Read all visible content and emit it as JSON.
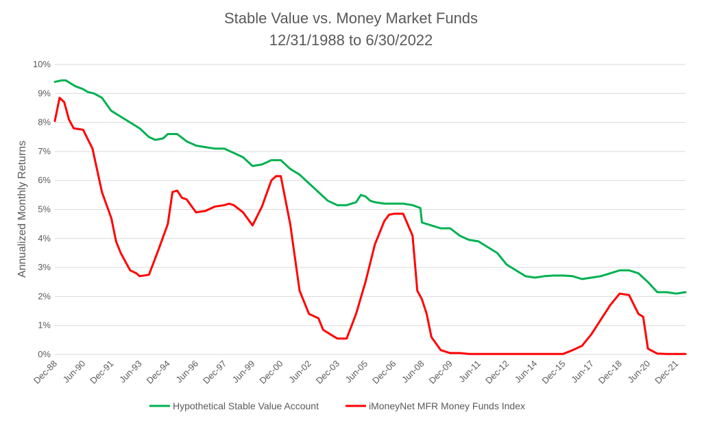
{
  "chart_data": {
    "type": "line",
    "title": "Stable Value vs. Money Market Funds",
    "subtitle": "12/31/1988 to 6/30/2022",
    "xlabel": "",
    "ylabel": "Annualized Monthly Returns",
    "ylim": [
      0,
      10
    ],
    "y_ticks": [
      "0%",
      "1%",
      "2%",
      "3%",
      "4%",
      "5%",
      "6%",
      "7%",
      "8%",
      "9%",
      "10%"
    ],
    "x_ticks": [
      "Dec-88",
      "Jun-90",
      "Dec-91",
      "Jun-93",
      "Dec-94",
      "Jun-96",
      "Dec-97",
      "Jun-99",
      "Dec-00",
      "Jun-02",
      "Dec-03",
      "Jun-05",
      "Dec-06",
      "Jun-08",
      "Dec-09",
      "Jun-11",
      "Dec-12",
      "Jun-14",
      "Dec-15",
      "Jun-17",
      "Dec-18",
      "Jun-20",
      "Dec-21"
    ],
    "x_start": "Dec-88",
    "x_end": "Jun-22",
    "grid": true,
    "legend_position": "bottom",
    "series": [
      {
        "name": "Hypothetical Stable Value Account",
        "color": "#00b050",
        "points": [
          [
            "Dec-88",
            9.4
          ],
          [
            "Apr-89",
            9.45
          ],
          [
            "Jul-89",
            9.45
          ],
          [
            "Jan-90",
            9.25
          ],
          [
            "Jun-90",
            9.15
          ],
          [
            "Sep-90",
            9.05
          ],
          [
            "Jan-91",
            9.0
          ],
          [
            "Jun-91",
            8.85
          ],
          [
            "Dec-91",
            8.4
          ],
          [
            "Jun-92",
            8.2
          ],
          [
            "Dec-92",
            8.0
          ],
          [
            "Jun-93",
            7.8
          ],
          [
            "Dec-93",
            7.5
          ],
          [
            "Apr-94",
            7.4
          ],
          [
            "Sep-94",
            7.45
          ],
          [
            "Dec-94",
            7.6
          ],
          [
            "Jun-95",
            7.6
          ],
          [
            "Dec-95",
            7.35
          ],
          [
            "Jun-96",
            7.2
          ],
          [
            "Dec-96",
            7.15
          ],
          [
            "Jun-97",
            7.1
          ],
          [
            "Dec-97",
            7.1
          ],
          [
            "Jun-98",
            6.95
          ],
          [
            "Dec-98",
            6.8
          ],
          [
            "Jun-99",
            6.5
          ],
          [
            "Dec-99",
            6.55
          ],
          [
            "Jun-00",
            6.7
          ],
          [
            "Dec-00",
            6.7
          ],
          [
            "Jun-01",
            6.4
          ],
          [
            "Dec-01",
            6.2
          ],
          [
            "Jun-02",
            5.9
          ],
          [
            "Dec-02",
            5.6
          ],
          [
            "Jun-03",
            5.3
          ],
          [
            "Dec-03",
            5.15
          ],
          [
            "Jun-04",
            5.15
          ],
          [
            "Dec-04",
            5.25
          ],
          [
            "Mar-05",
            5.5
          ],
          [
            "Jun-05",
            5.45
          ],
          [
            "Sep-05",
            5.3
          ],
          [
            "Dec-05",
            5.25
          ],
          [
            "Jun-06",
            5.2
          ],
          [
            "Dec-06",
            5.2
          ],
          [
            "Jun-07",
            5.2
          ],
          [
            "Dec-07",
            5.15
          ],
          [
            "May-08",
            5.05
          ],
          [
            "Jun-08",
            4.55
          ],
          [
            "Dec-08",
            4.45
          ],
          [
            "Jun-09",
            4.35
          ],
          [
            "Dec-09",
            4.35
          ],
          [
            "Jun-10",
            4.1
          ],
          [
            "Dec-10",
            3.95
          ],
          [
            "Jun-11",
            3.9
          ],
          [
            "Dec-11",
            3.7
          ],
          [
            "Jun-12",
            3.5
          ],
          [
            "Dec-12",
            3.1
          ],
          [
            "Jun-13",
            2.9
          ],
          [
            "Dec-13",
            2.7
          ],
          [
            "Jun-14",
            2.65
          ],
          [
            "Dec-14",
            2.7
          ],
          [
            "Jun-15",
            2.72
          ],
          [
            "Dec-15",
            2.72
          ],
          [
            "Jun-16",
            2.7
          ],
          [
            "Dec-16",
            2.6
          ],
          [
            "Jun-17",
            2.65
          ],
          [
            "Dec-17",
            2.7
          ],
          [
            "Jun-18",
            2.8
          ],
          [
            "Dec-18",
            2.9
          ],
          [
            "Jun-19",
            2.9
          ],
          [
            "Dec-19",
            2.8
          ],
          [
            "Jun-20",
            2.5
          ],
          [
            "Dec-20",
            2.15
          ],
          [
            "Jun-21",
            2.15
          ],
          [
            "Dec-21",
            2.1
          ],
          [
            "Jun-22",
            2.15
          ]
        ]
      },
      {
        "name": "iMoneyNet MFR Money Funds Index",
        "color": "#ff0000",
        "points": [
          [
            "Dec-88",
            8.05
          ],
          [
            "Mar-89",
            8.85
          ],
          [
            "Jun-89",
            8.7
          ],
          [
            "Sep-89",
            8.1
          ],
          [
            "Dec-89",
            7.8
          ],
          [
            "Jun-90",
            7.75
          ],
          [
            "Dec-90",
            7.1
          ],
          [
            "Jun-91",
            5.6
          ],
          [
            "Dec-91",
            4.7
          ],
          [
            "Mar-92",
            3.9
          ],
          [
            "Jun-92",
            3.5
          ],
          [
            "Dec-92",
            2.9
          ],
          [
            "Apr-93",
            2.8
          ],
          [
            "Jun-93",
            2.7
          ],
          [
            "Dec-93",
            2.75
          ],
          [
            "Jun-94",
            3.6
          ],
          [
            "Dec-94",
            4.5
          ],
          [
            "Mar-95",
            5.6
          ],
          [
            "Jun-95",
            5.65
          ],
          [
            "Sep-95",
            5.4
          ],
          [
            "Dec-95",
            5.35
          ],
          [
            "Jun-96",
            4.9
          ],
          [
            "Dec-96",
            4.95
          ],
          [
            "Jun-97",
            5.1
          ],
          [
            "Dec-97",
            5.15
          ],
          [
            "Mar-98",
            5.2
          ],
          [
            "Jun-98",
            5.15
          ],
          [
            "Dec-98",
            4.9
          ],
          [
            "Jun-99",
            4.45
          ],
          [
            "Dec-99",
            5.1
          ],
          [
            "Jun-00",
            6.0
          ],
          [
            "Sep-00",
            6.15
          ],
          [
            "Dec-00",
            6.15
          ],
          [
            "Jun-01",
            4.5
          ],
          [
            "Dec-01",
            2.2
          ],
          [
            "Jun-02",
            1.4
          ],
          [
            "Dec-02",
            1.25
          ],
          [
            "Mar-03",
            0.85
          ],
          [
            "Jun-03",
            0.75
          ],
          [
            "Dec-03",
            0.55
          ],
          [
            "Jun-04",
            0.55
          ],
          [
            "Dec-04",
            1.4
          ],
          [
            "Jun-05",
            2.5
          ],
          [
            "Dec-05",
            3.8
          ],
          [
            "Jun-06",
            4.6
          ],
          [
            "Sep-06",
            4.82
          ],
          [
            "Dec-06",
            4.85
          ],
          [
            "Jun-07",
            4.85
          ],
          [
            "Dec-07",
            4.1
          ],
          [
            "Mar-08",
            2.2
          ],
          [
            "Jun-08",
            1.9
          ],
          [
            "Sep-08",
            1.4
          ],
          [
            "Dec-08",
            0.6
          ],
          [
            "Jun-09",
            0.15
          ],
          [
            "Dec-09",
            0.05
          ],
          [
            "Jun-10",
            0.05
          ],
          [
            "Dec-10",
            0.02
          ],
          [
            "Jun-12",
            0.02
          ],
          [
            "Dec-14",
            0.02
          ],
          [
            "Dec-15",
            0.02
          ],
          [
            "Jun-16",
            0.15
          ],
          [
            "Dec-16",
            0.3
          ],
          [
            "Jun-17",
            0.7
          ],
          [
            "Dec-17",
            1.2
          ],
          [
            "Jun-18",
            1.7
          ],
          [
            "Dec-18",
            2.1
          ],
          [
            "Jun-19",
            2.05
          ],
          [
            "Dec-19",
            1.4
          ],
          [
            "Mar-20",
            1.3
          ],
          [
            "Jun-20",
            0.2
          ],
          [
            "Dec-20",
            0.03
          ],
          [
            "Jun-21",
            0.02
          ],
          [
            "Dec-21",
            0.02
          ],
          [
            "Jun-22",
            0.02
          ]
        ]
      }
    ]
  }
}
